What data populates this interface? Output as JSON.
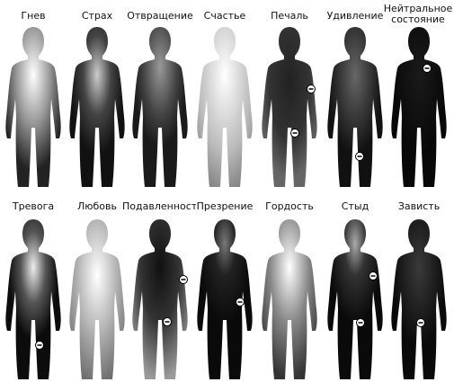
{
  "rows": [
    [
      "Гнев",
      "Страх",
      "Отвращение",
      "Счастье",
      "Печаль",
      "Удивление",
      "Нейтральное состояние"
    ],
    [
      "Тревога",
      "Любовь",
      "Подавленность",
      "Презрение",
      "Гордость",
      "Стыд",
      "Зависть"
    ]
  ]
}
